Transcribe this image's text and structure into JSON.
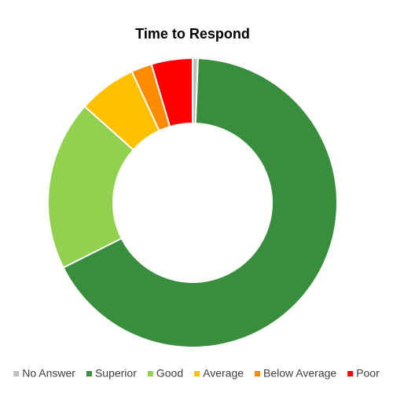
{
  "chart_data": {
    "type": "donut",
    "title": "Time to Respond",
    "categories": [
      "No Answer",
      "Superior",
      "Good",
      "Average",
      "Below Average",
      "Poor"
    ],
    "values": [
      0.6,
      67,
      19,
      6.5,
      2.3,
      4.6
    ],
    "colors": [
      "#bfbfbf",
      "#388e3c",
      "#92d050",
      "#ffc000",
      "#ff8c00",
      "#ff0000"
    ],
    "legend": "bottom"
  }
}
